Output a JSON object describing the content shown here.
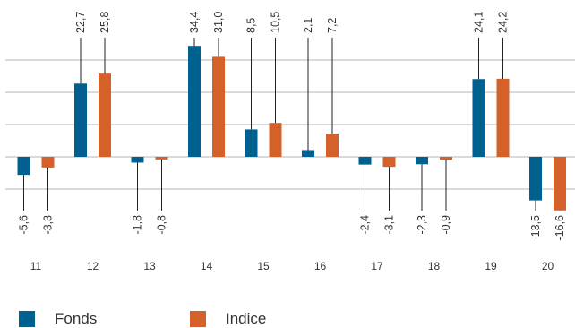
{
  "chart_data": {
    "type": "bar",
    "categories": [
      "11",
      "12",
      "13",
      "14",
      "15",
      "16",
      "17",
      "18",
      "19",
      "20"
    ],
    "series": [
      {
        "name": "Fonds",
        "color": "#00608f",
        "values": [
          -5.6,
          22.7,
          -1.8,
          34.4,
          8.5,
          2.1,
          -2.4,
          -2.3,
          24.1,
          -13.5
        ],
        "labels": [
          "-5,6",
          "22,7",
          "-1,8",
          "34,4",
          "8,5",
          "2,1",
          "-2,4",
          "-2,3",
          "24,1",
          "-13,5"
        ]
      },
      {
        "name": "Indice",
        "color": "#d4602a",
        "values": [
          -3.3,
          25.8,
          -0.8,
          31.0,
          10.5,
          7.2,
          -3.1,
          -0.9,
          24.2,
          -16.6
        ],
        "labels": [
          "-3,3",
          "25,8",
          "-0,8",
          "31,0",
          "10,5",
          "7,2",
          "-3,1",
          "-0,9",
          "24,2",
          "-16,6"
        ]
      }
    ],
    "ylim": [
      -20,
      35
    ],
    "grid": true,
    "legend_position": "bottom-left"
  },
  "legend": {
    "items": [
      {
        "label": "Fonds",
        "color": "#00608f"
      },
      {
        "label": "Indice",
        "color": "#d4602a"
      }
    ]
  }
}
